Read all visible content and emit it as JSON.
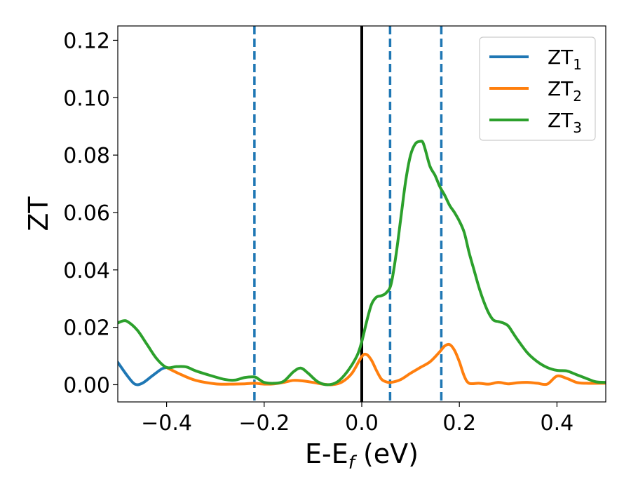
{
  "chart_data": {
    "type": "line",
    "title": "",
    "xlabel": {
      "base": "E-E",
      "sub": "f",
      "suffix": " (eV)"
    },
    "ylabel": "ZT",
    "xlim": [
      -0.5,
      0.5
    ],
    "ylim": [
      -0.006,
      0.125
    ],
    "x_ticks": [
      -0.4,
      -0.2,
      0.0,
      0.2,
      0.4
    ],
    "x_tick_labels": [
      "−0.4",
      "−0.2",
      "0.0",
      "0.2",
      "0.4"
    ],
    "y_ticks": [
      0.0,
      0.02,
      0.04,
      0.06,
      0.08,
      0.1,
      0.12
    ],
    "y_tick_labels": [
      "0.00",
      "0.02",
      "0.04",
      "0.06",
      "0.08",
      "0.10",
      "0.12"
    ],
    "grid": false,
    "legend_position": "top-right",
    "vertical_lines": [
      {
        "x": 0.0,
        "style": "solid",
        "color": "#000000"
      },
      {
        "x": -0.22,
        "style": "dashed",
        "color": "#1f77b4"
      },
      {
        "x": 0.058,
        "style": "dashed",
        "color": "#1f77b4"
      },
      {
        "x": 0.163,
        "style": "dashed",
        "color": "#1f77b4"
      }
    ],
    "series": [
      {
        "name": "ZT",
        "name_sub": "1",
        "color": "#1f77b4",
        "x": [
          -0.5,
          -0.48,
          -0.465,
          -0.45,
          -0.43,
          -0.41,
          -0.4
        ],
        "y": [
          0.0078,
          0.003,
          0.0002,
          0.0005,
          0.003,
          0.0055,
          0.006
        ]
      },
      {
        "name": "ZT",
        "name_sub": "2",
        "color": "#ff7f0e",
        "x": [
          -0.4,
          -0.37,
          -0.34,
          -0.3,
          -0.27,
          -0.24,
          -0.22,
          -0.2,
          -0.18,
          -0.16,
          -0.14,
          -0.12,
          -0.1,
          -0.08,
          -0.06,
          -0.04,
          -0.02,
          0.0,
          0.01,
          0.02,
          0.03,
          0.04,
          0.05,
          0.06,
          0.08,
          0.1,
          0.12,
          0.14,
          0.16,
          0.17,
          0.18,
          0.19,
          0.2,
          0.21,
          0.22,
          0.24,
          0.26,
          0.28,
          0.3,
          0.32,
          0.34,
          0.36,
          0.38,
          0.4,
          0.42,
          0.44,
          0.46,
          0.5
        ],
        "y": [
          0.006,
          0.0035,
          0.0015,
          0.0003,
          0.0002,
          0.0003,
          0.0005,
          0.0002,
          0.0003,
          0.0008,
          0.0015,
          0.0013,
          0.0008,
          0.0002,
          0.0,
          0.001,
          0.004,
          0.0098,
          0.0105,
          0.0085,
          0.005,
          0.002,
          0.001,
          0.0008,
          0.0018,
          0.004,
          0.006,
          0.008,
          0.0115,
          0.0135,
          0.014,
          0.012,
          0.008,
          0.003,
          0.0005,
          0.0005,
          0.0002,
          0.0008,
          0.0003,
          0.0007,
          0.0008,
          0.0005,
          0.0002,
          0.003,
          0.0022,
          0.0008,
          0.0005,
          0.0005
        ]
      },
      {
        "name": "ZT",
        "name_sub": "3",
        "color": "#2ca02c",
        "x": [
          -0.5,
          -0.49,
          -0.48,
          -0.46,
          -0.44,
          -0.42,
          -0.4,
          -0.38,
          -0.36,
          -0.34,
          -0.31,
          -0.28,
          -0.26,
          -0.24,
          -0.22,
          -0.21,
          -0.2,
          -0.18,
          -0.16,
          -0.14,
          -0.125,
          -0.11,
          -0.09,
          -0.07,
          -0.05,
          -0.03,
          -0.01,
          0.0,
          0.01,
          0.02,
          0.03,
          0.04,
          0.05,
          0.06,
          0.07,
          0.08,
          0.09,
          0.1,
          0.11,
          0.12,
          0.125,
          0.13,
          0.14,
          0.15,
          0.16,
          0.17,
          0.18,
          0.19,
          0.2,
          0.21,
          0.22,
          0.23,
          0.24,
          0.25,
          0.26,
          0.27,
          0.28,
          0.29,
          0.3,
          0.31,
          0.32,
          0.34,
          0.36,
          0.38,
          0.4,
          0.42,
          0.44,
          0.46,
          0.48,
          0.5
        ],
        "y": [
          0.0215,
          0.0222,
          0.022,
          0.019,
          0.014,
          0.009,
          0.006,
          0.0063,
          0.0062,
          0.0048,
          0.0032,
          0.0018,
          0.0016,
          0.0025,
          0.0027,
          0.0018,
          0.0008,
          0.0005,
          0.0012,
          0.0045,
          0.0058,
          0.004,
          0.001,
          0.0,
          0.001,
          0.0045,
          0.01,
          0.015,
          0.022,
          0.028,
          0.0305,
          0.031,
          0.032,
          0.035,
          0.045,
          0.058,
          0.071,
          0.08,
          0.084,
          0.0848,
          0.0845,
          0.082,
          0.076,
          0.073,
          0.069,
          0.066,
          0.0625,
          0.06,
          0.057,
          0.053,
          0.046,
          0.04,
          0.034,
          0.029,
          0.025,
          0.0225,
          0.022,
          0.0215,
          0.0205,
          0.018,
          0.0155,
          0.011,
          0.008,
          0.006,
          0.005,
          0.0048,
          0.0035,
          0.0022,
          0.001,
          0.0008
        ]
      }
    ]
  }
}
